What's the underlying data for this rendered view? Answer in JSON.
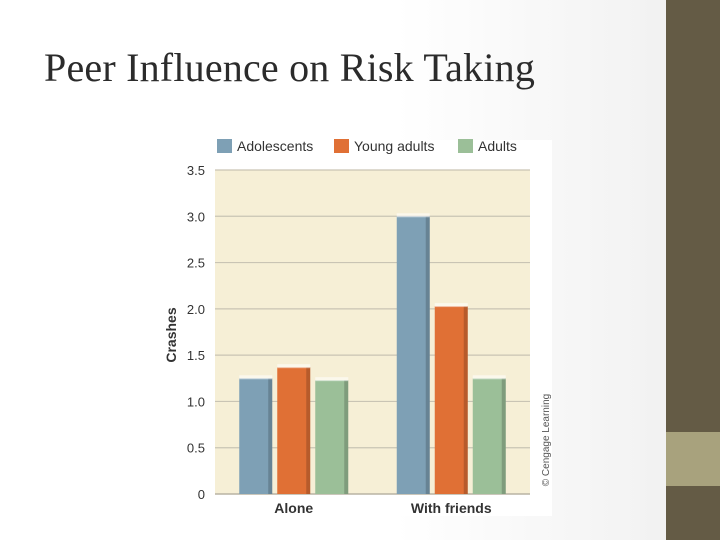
{
  "title": "Peer Influence on Risk Taking",
  "colors": {
    "sidebar": "#645b45",
    "sidebar_accent": "#a8a27d",
    "plot_bg": "#f6efd6"
  },
  "chart_data": {
    "type": "bar",
    "categories": [
      "Alone",
      "With friends"
    ],
    "series": [
      {
        "name": "Adolescents",
        "values": [
          1.25,
          3.0
        ],
        "color": "#7ea0b5"
      },
      {
        "name": "Young adults",
        "values": [
          1.37,
          2.03
        ],
        "color": "#e07035"
      },
      {
        "name": "Adults",
        "values": [
          1.23,
          1.25
        ],
        "color": "#9bbf98"
      }
    ],
    "ylabel": "Crashes",
    "xlabel": "",
    "ylim": [
      0,
      3.5
    ],
    "yticks": [
      "0",
      "0.5",
      "1.0",
      "1.5",
      "2.0",
      "2.5",
      "3.0",
      "3.5"
    ],
    "grid": true,
    "legend": "top",
    "credit": "© Cengage Learning"
  }
}
